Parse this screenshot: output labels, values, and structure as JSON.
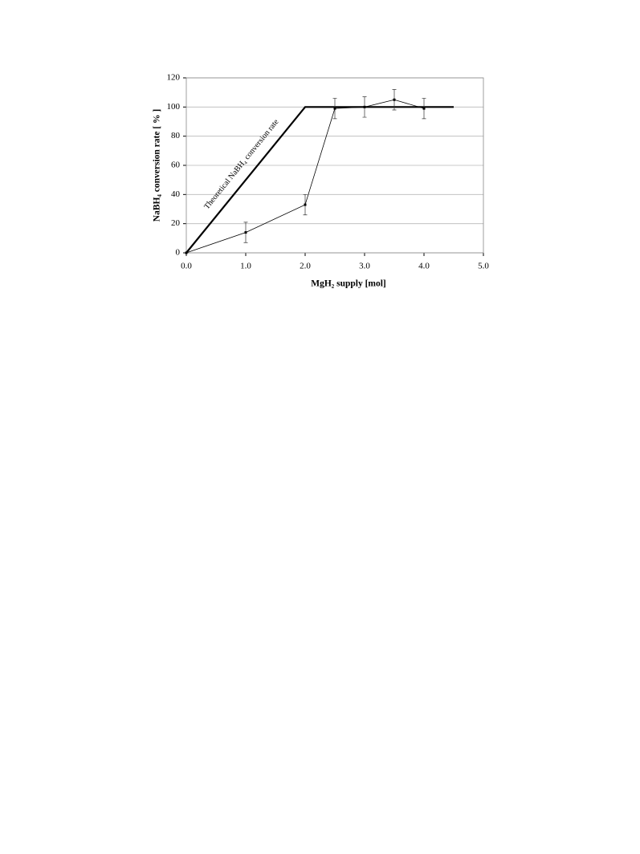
{
  "chart_data": {
    "type": "line",
    "x_label": "MgH₂ supply [mol]",
    "y_label": "NaBH₄ conversion rate [ % ]",
    "xlim": [
      0,
      5
    ],
    "xticks": [
      {
        "value": 0,
        "label": "0.0"
      },
      {
        "value": 1,
        "label": "1.0"
      },
      {
        "value": 2,
        "label": "2.0"
      },
      {
        "value": 3,
        "label": "3.0"
      },
      {
        "value": 4,
        "label": "4.0"
      },
      {
        "value": 5,
        "label": "5.0"
      }
    ],
    "ylim": [
      0,
      120
    ],
    "yticks": [
      0,
      20,
      40,
      60,
      80,
      100,
      120
    ],
    "grid": true,
    "series": [
      {
        "name": "Theoretical NaBH₄ conversion rate",
        "color": "#000000",
        "x": [
          0,
          2.0,
          4.5
        ],
        "values": [
          0,
          100,
          100
        ]
      },
      {
        "color": "#000000",
        "x": [
          0,
          1,
          2,
          2.5,
          3,
          3.5,
          4
        ],
        "values": [
          0,
          14,
          33,
          99,
          100,
          105,
          99
        ],
        "errors": [
          0,
          7,
          7,
          7,
          7,
          7,
          7
        ]
      }
    ]
  }
}
